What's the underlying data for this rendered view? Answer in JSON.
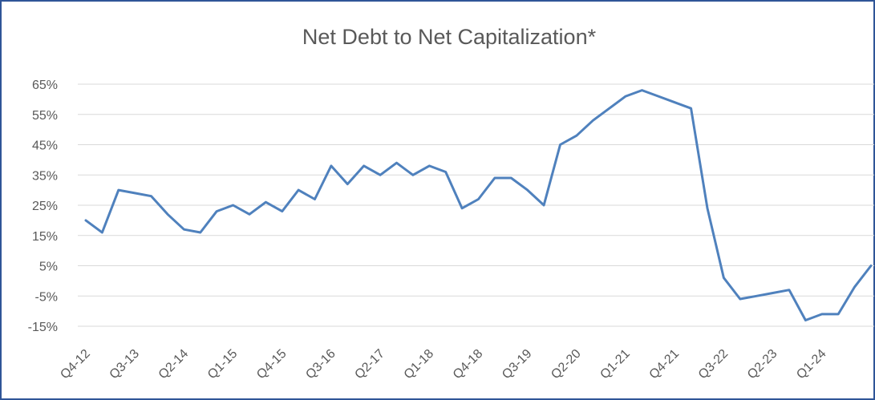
{
  "chart_data": {
    "type": "line",
    "title": "Net Debt to Net Capitalization*",
    "categories": [
      "Q4-12",
      null,
      null,
      "Q3-13",
      null,
      null,
      "Q2-14",
      null,
      null,
      "Q1-15",
      null,
      null,
      "Q4-15",
      null,
      null,
      "Q3-16",
      null,
      null,
      "Q2-17",
      null,
      null,
      "Q1-18",
      null,
      null,
      "Q4-18",
      null,
      null,
      "Q3-19",
      null,
      null,
      "Q2-20",
      null,
      null,
      "Q1-21",
      null,
      null,
      "Q4-21",
      null,
      null,
      "Q3-22",
      null,
      null,
      "Q2-23",
      null,
      null,
      "Q1-24",
      null,
      null,
      null
    ],
    "series": [
      {
        "name": "Net Debt to Net Capitalization",
        "color": "#4f81bd",
        "values": [
          20,
          16,
          30,
          29,
          28,
          22,
          17,
          16,
          23,
          25,
          22,
          26,
          23,
          30,
          27,
          38,
          32,
          38,
          35,
          39,
          35,
          38,
          36,
          24,
          27,
          34,
          34,
          30,
          25,
          45,
          48,
          53,
          57,
          61,
          63,
          61,
          59,
          57,
          24,
          1,
          -6,
          -5,
          -4,
          -3,
          -13,
          -11,
          -11,
          -2,
          5
        ]
      }
    ],
    "ylim": [
      -20,
      65
    ],
    "yticks": [
      {
        "value": -15,
        "label": "-15%"
      },
      {
        "value": -5,
        "label": "-5%"
      },
      {
        "value": 5,
        "label": "5%"
      },
      {
        "value": 15,
        "label": "15%"
      },
      {
        "value": 25,
        "label": "25%"
      },
      {
        "value": 35,
        "label": "35%"
      },
      {
        "value": 45,
        "label": "45%"
      },
      {
        "value": 55,
        "label": "55%"
      },
      {
        "value": 65,
        "label": "65%"
      }
    ],
    "grid": true
  }
}
